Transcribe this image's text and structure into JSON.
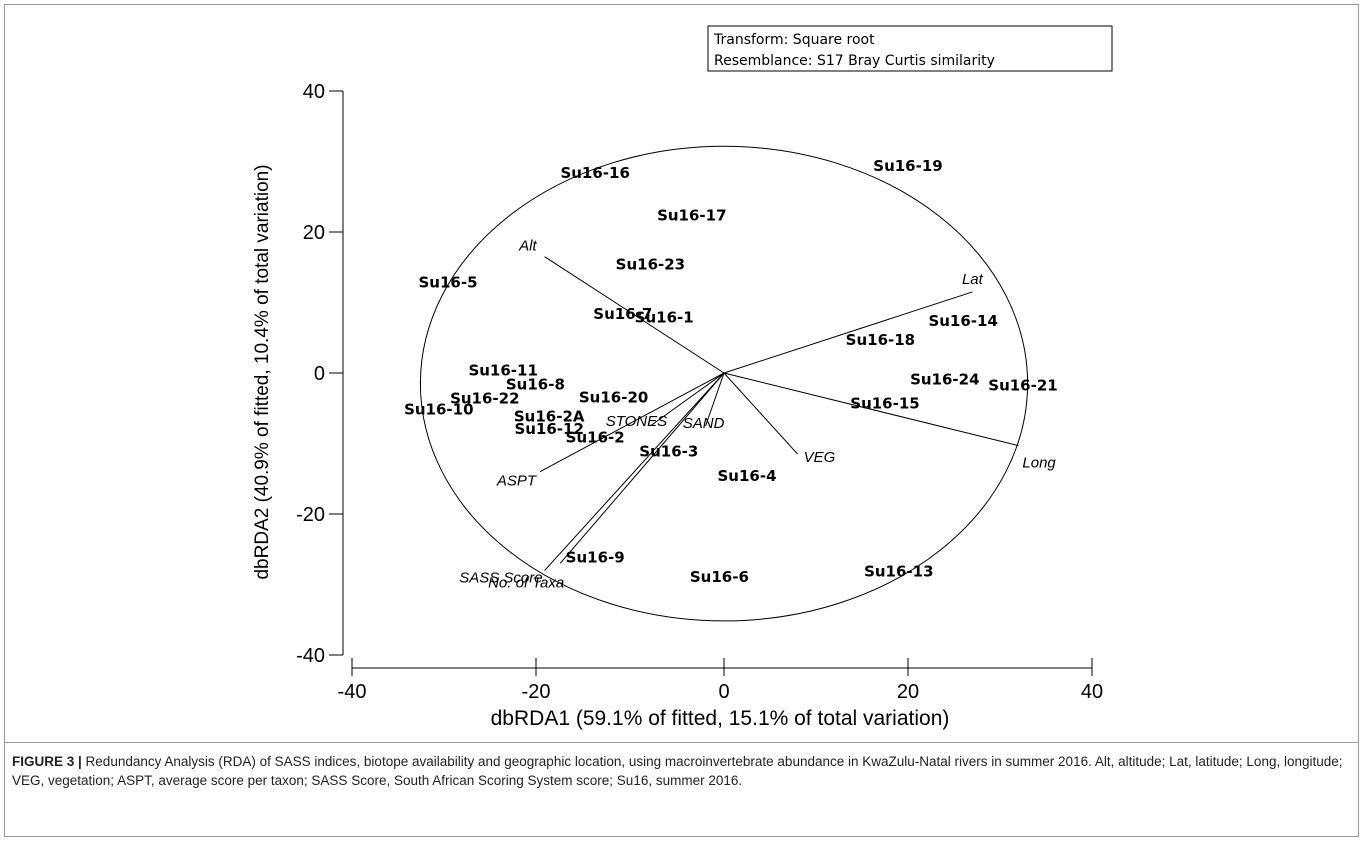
{
  "chart_data": {
    "type": "scatter",
    "title": "",
    "xlabel": "dbRDA1 (59.1% of fitted, 15.1% of total variation)",
    "ylabel": "dbRDA2 (40.9% of fitted, 10.4% of total variation)",
    "xlim": [
      -40,
      40
    ],
    "ylim": [
      -40,
      40
    ],
    "xticks": [
      -40,
      -20,
      0,
      20,
      40
    ],
    "yticks": [
      -40,
      -20,
      0,
      20,
      40
    ],
    "grid": false,
    "legend": {
      "placement": "top-right",
      "lines": [
        "Transform: Square root",
        "Resemblance: S17 Bray Curtis similarity"
      ]
    },
    "correlation_circle_radius": 33,
    "points": [
      {
        "label": "Su16-16",
        "x": -14,
        "y": 28.5
      },
      {
        "label": "Su16-19",
        "x": 20,
        "y": 29.5
      },
      {
        "label": "Su16-17",
        "x": -3.5,
        "y": 22.5
      },
      {
        "label": "Su16-23",
        "x": -8,
        "y": 15.5
      },
      {
        "label": "Su16-5",
        "x": -30,
        "y": 13
      },
      {
        "label": "Su16-7",
        "x": -11,
        "y": 8.5
      },
      {
        "label": "Su16-1",
        "x": -6.5,
        "y": 8
      },
      {
        "label": "Su16-14",
        "x": 26,
        "y": 7.5
      },
      {
        "label": "Su16-18",
        "x": 17,
        "y": 4.8
      },
      {
        "label": "Su16-11",
        "x": -24,
        "y": 0.5
      },
      {
        "label": "Su16-8",
        "x": -20.5,
        "y": -1.5
      },
      {
        "label": "Su16-24",
        "x": 24,
        "y": -0.8
      },
      {
        "label": "Su16-21",
        "x": 32.5,
        "y": -1.6
      },
      {
        "label": "Su16-22",
        "x": -26,
        "y": -3.5
      },
      {
        "label": "Su16-20",
        "x": -12,
        "y": -3.3
      },
      {
        "label": "Su16-10",
        "x": -31,
        "y": -5
      },
      {
        "label": "Su16-15",
        "x": 17.5,
        "y": -4.2
      },
      {
        "label": "Su16-12",
        "x": -19,
        "y": -7.8
      },
      {
        "label": "Su16-2",
        "x": -14,
        "y": -9
      },
      {
        "label": "Su16-3",
        "x": -6,
        "y": -11
      },
      {
        "label": "Su16-4",
        "x": 2.5,
        "y": -14.5
      },
      {
        "label": "Su16-9",
        "x": -14,
        "y": -26
      },
      {
        "label": "Su16-6",
        "x": -0.5,
        "y": -28.8
      },
      {
        "label": "Su16-13",
        "x": 19,
        "y": -28
      },
      {
        "label": "Su16-2A",
        "x": -19,
        "y": -6
      }
    ],
    "vectors": [
      {
        "label": "Alt",
        "x": -19.5,
        "y": 16.5
      },
      {
        "label": "Lat",
        "x": 27,
        "y": 11.5
      },
      {
        "label": "Long",
        "x": 32,
        "y": -10.3
      },
      {
        "label": "VEG",
        "x": 8,
        "y": -11.5
      },
      {
        "label": "SAND",
        "x": -2,
        "y": -7.5
      },
      {
        "label": "STONES",
        "x": -8,
        "y": -7.5
      },
      {
        "label": "ASPT",
        "x": -20,
        "y": -14
      },
      {
        "label": "No. of Taxa",
        "x": -17.8,
        "y": -27
      },
      {
        "label": "SASS Score",
        "x": -19.5,
        "y": -28
      }
    ]
  },
  "caption": {
    "figure_label": "FIGURE 3 |",
    "text": " Redundancy Analysis (RDA) of SASS indices, biotope availability and geographic location, using macroinvertebrate abundance in KwaZulu-Natal rivers in summer 2016. Alt, altitude; Lat, latitude; Long, longitude; VEG, vegetation; ASPT, average score per taxon; SASS Score, South African Scoring System score; Su16, summer 2016."
  }
}
